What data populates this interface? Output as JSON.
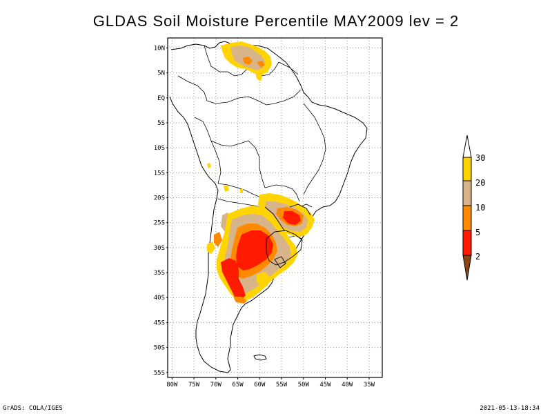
{
  "title": "GLDAS Soil Moisture Percentile MAY2009 lev = 2",
  "footer": {
    "left": "GrADS: COLA/IGES",
    "right": "2021-05-13-18:34"
  },
  "axes": {
    "lat_labels": [
      "10N",
      "5N",
      "EQ",
      "5S",
      "10S",
      "15S",
      "20S",
      "25S",
      "30S",
      "35S",
      "40S",
      "45S",
      "50S",
      "55S"
    ],
    "lon_labels": [
      "80W",
      "75W",
      "70W",
      "65W",
      "60W",
      "55W",
      "50W",
      "45W",
      "40W",
      "35W"
    ]
  },
  "colorbar": {
    "labels": [
      "2",
      "5",
      "10",
      "20",
      "30"
    ],
    "colors": {
      "below_2": "#8b4513",
      "2_5": "#ff1a00",
      "5_10": "#ff8a00",
      "10_20": "#d8b48a",
      "20_30": "#ffd400",
      "above_30": "#ffffff"
    }
  }
}
